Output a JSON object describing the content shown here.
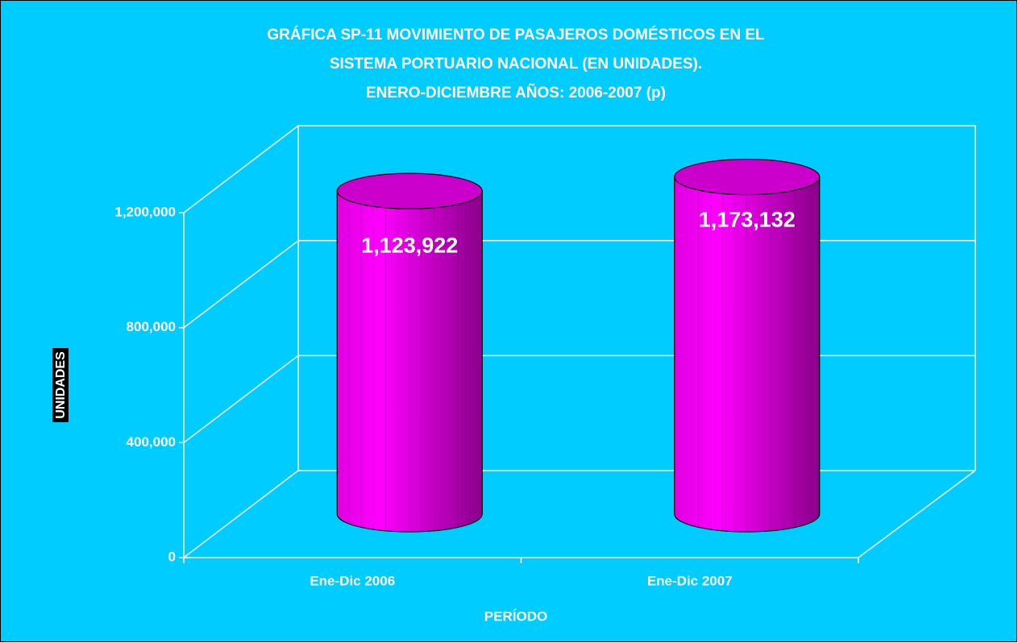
{
  "chart_data": {
    "type": "bar3d-cylinder",
    "title": [
      "GRÁFICA SP-11 MOVIMIENTO DE PASAJEROS DOMÉSTICOS EN EL",
      "SISTEMA PORTUARIO NACIONAL (EN UNIDADES).",
      "ENERO-DICIEMBRE AÑOS: 2006-2007 (p)"
    ],
    "x_label": "PERÍODO",
    "y_label": "UNIDADES",
    "categories": [
      "Ene-Dic 2006",
      "Ene-Dic 2007"
    ],
    "values": [
      1123922,
      1173132
    ],
    "value_labels": [
      "1,123,922",
      "1,173,132"
    ],
    "color": "#ff00ff",
    "ylim": [
      0,
      1200000
    ],
    "yticks": [
      0,
      {
        "value": 400000,
        "label": "400,000"
      },
      {
        "value": 800000,
        "label": "800,000"
      },
      {
        "value": 1200000,
        "label": "1,200,000"
      }
    ],
    "grid": true
  }
}
